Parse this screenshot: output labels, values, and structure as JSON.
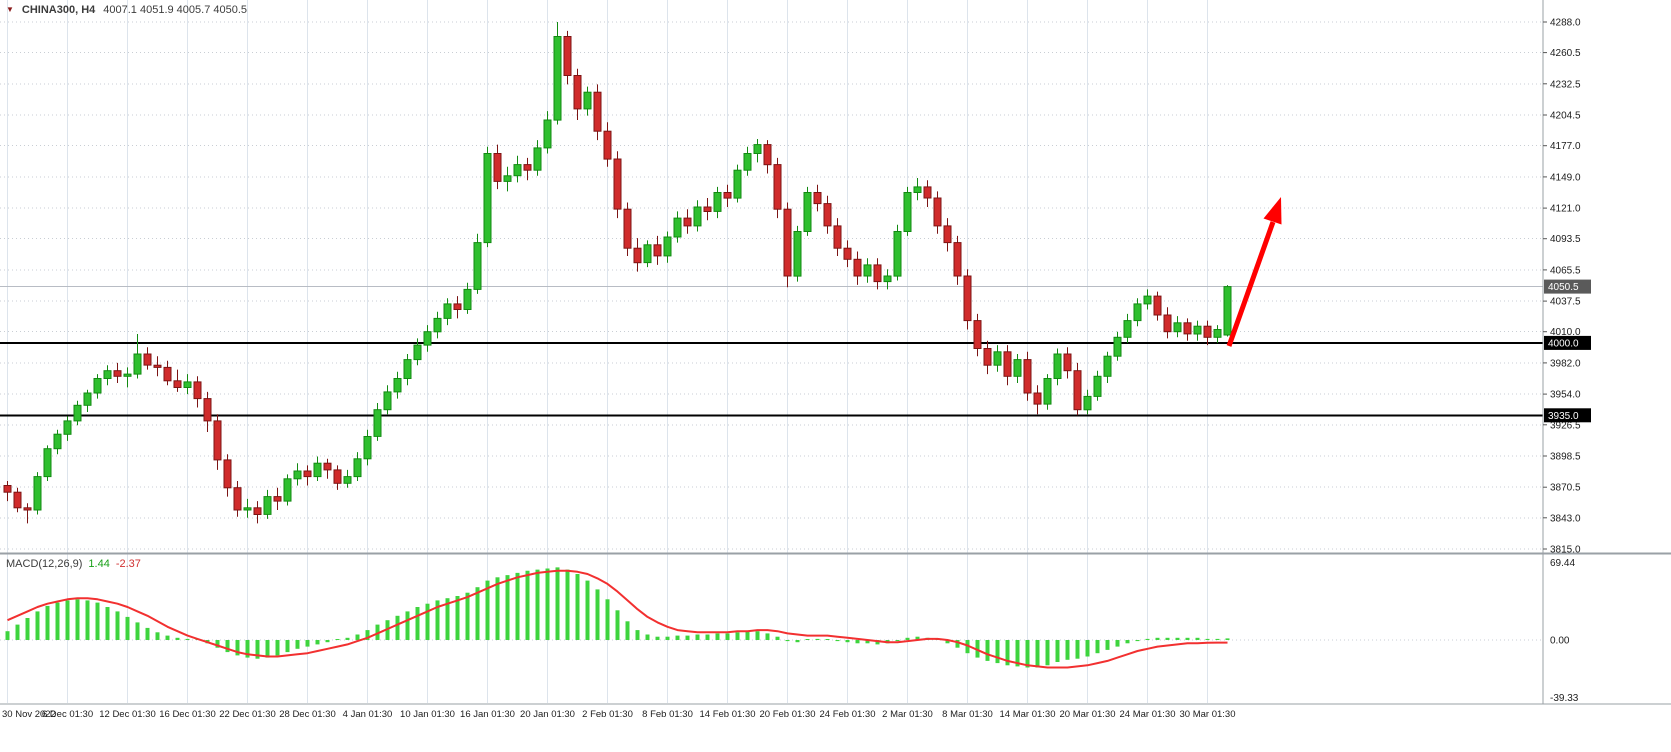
{
  "header": {
    "symbol_timeframe": "CHINA300, H4",
    "ohlc": "4007.1 4051.9 4005.7 4050.5"
  },
  "indicator": {
    "name": "MACD(12,26,9)",
    "main_value": "1.44",
    "signal_value": "-2.37"
  },
  "chart_data": {
    "type": "candlestick",
    "symbol": "CHINA300",
    "timeframe": "H4",
    "title": "CHINA300, H4",
    "ylim": [
      3815.0,
      4288.0
    ],
    "grid": true,
    "price_axis_ticks": [
      4288.0,
      4260.5,
      4232.5,
      4204.5,
      4177.0,
      4149.0,
      4121.0,
      4093.5,
      4065.5,
      4037.5,
      4010.0,
      3982.0,
      3954.0,
      3926.5,
      3898.5,
      3870.5,
      3843.0,
      3815.0
    ],
    "time_axis_labels": [
      "30 Nov 2022",
      "6 Dec 01:30",
      "12 Dec 01:30",
      "16 Dec 01:30",
      "22 Dec 01:30",
      "28 Dec 01:30",
      "4 Jan 01:30",
      "10 Jan 01:30",
      "16 Jan 01:30",
      "20 Jan 01:30",
      "2 Feb 01:30",
      "8 Feb 01:30",
      "14 Feb 01:30",
      "20 Feb 01:30",
      "24 Feb 01:30",
      "2 Mar 01:30",
      "8 Mar 01:30",
      "14 Mar 01:30",
      "20 Mar 01:30",
      "24 Mar 01:30",
      "30 Mar 01:30"
    ],
    "candles_per_label": 6,
    "current_price": 4050.5,
    "horizontal_lines": [
      4000.0,
      3935.0
    ],
    "annotation": {
      "type": "arrow-up-right",
      "color": "#ff0000"
    },
    "candles_ohlc": [
      [
        3872,
        3876,
        3858,
        3866
      ],
      [
        3866,
        3870,
        3848,
        3852
      ],
      [
        3852,
        3856,
        3838,
        3850
      ],
      [
        3850,
        3884,
        3846,
        3880
      ],
      [
        3880,
        3908,
        3876,
        3905
      ],
      [
        3905,
        3922,
        3900,
        3918
      ],
      [
        3918,
        3934,
        3912,
        3930
      ],
      [
        3930,
        3948,
        3926,
        3944
      ],
      [
        3944,
        3958,
        3938,
        3955
      ],
      [
        3955,
        3972,
        3950,
        3968
      ],
      [
        3968,
        3980,
        3962,
        3975
      ],
      [
        3975,
        3982,
        3964,
        3970
      ],
      [
        3970,
        3978,
        3960,
        3972
      ],
      [
        3972,
        4008,
        3968,
        3990
      ],
      [
        3990,
        3996,
        3976,
        3980
      ],
      [
        3980,
        3988,
        3970,
        3978
      ],
      [
        3978,
        3984,
        3962,
        3966
      ],
      [
        3966,
        3976,
        3956,
        3960
      ],
      [
        3960,
        3972,
        3954,
        3965
      ],
      [
        3965,
        3970,
        3942,
        3950
      ],
      [
        3950,
        3956,
        3920,
        3930
      ],
      [
        3930,
        3936,
        3886,
        3895
      ],
      [
        3895,
        3900,
        3862,
        3870
      ],
      [
        3870,
        3876,
        3844,
        3850
      ],
      [
        3850,
        3860,
        3843,
        3852
      ],
      [
        3852,
        3858,
        3838,
        3846
      ],
      [
        3846,
        3868,
        3842,
        3862
      ],
      [
        3862,
        3870,
        3850,
        3858
      ],
      [
        3858,
        3882,
        3854,
        3878
      ],
      [
        3878,
        3892,
        3872,
        3885
      ],
      [
        3885,
        3890,
        3872,
        3880
      ],
      [
        3880,
        3898,
        3876,
        3892
      ],
      [
        3892,
        3896,
        3878,
        3886
      ],
      [
        3886,
        3890,
        3868,
        3874
      ],
      [
        3874,
        3886,
        3870,
        3880
      ],
      [
        3880,
        3902,
        3876,
        3896
      ],
      [
        3896,
        3922,
        3890,
        3916
      ],
      [
        3916,
        3946,
        3912,
        3940
      ],
      [
        3940,
        3962,
        3936,
        3956
      ],
      [
        3956,
        3974,
        3950,
        3968
      ],
      [
        3968,
        3990,
        3962,
        3985
      ],
      [
        3985,
        4004,
        3980,
        3998
      ],
      [
        3998,
        4016,
        3992,
        4010
      ],
      [
        4010,
        4028,
        4004,
        4022
      ],
      [
        4022,
        4040,
        4016,
        4035
      ],
      [
        4035,
        4042,
        4022,
        4030
      ],
      [
        4030,
        4054,
        4026,
        4048
      ],
      [
        4048,
        4098,
        4044,
        4090
      ],
      [
        4090,
        4176,
        4086,
        4170
      ],
      [
        4170,
        4178,
        4138,
        4145
      ],
      [
        4145,
        4158,
        4136,
        4150
      ],
      [
        4150,
        4168,
        4144,
        4160
      ],
      [
        4160,
        4166,
        4146,
        4155
      ],
      [
        4155,
        4182,
        4150,
        4175
      ],
      [
        4175,
        4208,
        4170,
        4200
      ],
      [
        4200,
        4288,
        4196,
        4275
      ],
      [
        4275,
        4280,
        4232,
        4240
      ],
      [
        4240,
        4246,
        4200,
        4210
      ],
      [
        4210,
        4230,
        4204,
        4225
      ],
      [
        4225,
        4232,
        4182,
        4190
      ],
      [
        4190,
        4198,
        4158,
        4165
      ],
      [
        4165,
        4172,
        4112,
        4120
      ],
      [
        4120,
        4126,
        4078,
        4085
      ],
      [
        4085,
        4094,
        4064,
        4072
      ],
      [
        4072,
        4092,
        4068,
        4088
      ],
      [
        4088,
        4096,
        4070,
        4078
      ],
      [
        4078,
        4100,
        4072,
        4095
      ],
      [
        4095,
        4118,
        4090,
        4112
      ],
      [
        4112,
        4120,
        4098,
        4105
      ],
      [
        4105,
        4128,
        4100,
        4122
      ],
      [
        4122,
        4130,
        4110,
        4118
      ],
      [
        4118,
        4140,
        4112,
        4135
      ],
      [
        4135,
        4142,
        4122,
        4130
      ],
      [
        4130,
        4160,
        4126,
        4155
      ],
      [
        4155,
        4176,
        4150,
        4170
      ],
      [
        4170,
        4183,
        4162,
        4178
      ],
      [
        4178,
        4182,
        4152,
        4160
      ],
      [
        4160,
        4166,
        4112,
        4120
      ],
      [
        4120,
        4126,
        4050,
        4060
      ],
      [
        4060,
        4105,
        4055,
        4100
      ],
      [
        4100,
        4140,
        4096,
        4135
      ],
      [
        4135,
        4142,
        4118,
        4125
      ],
      [
        4125,
        4132,
        4098,
        4105
      ],
      [
        4105,
        4112,
        4078,
        4085
      ],
      [
        4085,
        4092,
        4068,
        4075
      ],
      [
        4075,
        4082,
        4052,
        4060
      ],
      [
        4060,
        4076,
        4054,
        4070
      ],
      [
        4070,
        4076,
        4048,
        4055
      ],
      [
        4055,
        4066,
        4048,
        4060
      ],
      [
        4060,
        4106,
        4056,
        4100
      ],
      [
        4100,
        4140,
        4096,
        4135
      ],
      [
        4135,
        4148,
        4128,
        4140
      ],
      [
        4140,
        4146,
        4122,
        4130
      ],
      [
        4130,
        4136,
        4098,
        4105
      ],
      [
        4105,
        4112,
        4082,
        4090
      ],
      [
        4090,
        4096,
        4052,
        4060
      ],
      [
        4060,
        4066,
        4012,
        4020
      ],
      [
        4020,
        4026,
        3988,
        3995
      ],
      [
        3995,
        4002,
        3972,
        3980
      ],
      [
        3980,
        3998,
        3974,
        3992
      ],
      [
        3992,
        3998,
        3962,
        3970
      ],
      [
        3970,
        3990,
        3964,
        3985
      ],
      [
        3985,
        3992,
        3948,
        3955
      ],
      [
        3955,
        3962,
        3936,
        3945
      ],
      [
        3945,
        3972,
        3940,
        3968
      ],
      [
        3968,
        3995,
        3962,
        3990
      ],
      [
        3990,
        3996,
        3968,
        3975
      ],
      [
        3975,
        3982,
        3935,
        3940
      ],
      [
        3940,
        3958,
        3936,
        3952
      ],
      [
        3952,
        3975,
        3948,
        3970
      ],
      [
        3970,
        3992,
        3964,
        3988
      ],
      [
        3988,
        4010,
        3984,
        4005
      ],
      [
        4005,
        4026,
        4000,
        4020
      ],
      [
        4020,
        4040,
        4015,
        4035
      ],
      [
        4035,
        4048,
        4030,
        4042
      ],
      [
        4042,
        4046,
        4020,
        4025
      ],
      [
        4025,
        4032,
        4004,
        4010
      ],
      [
        4010,
        4024,
        4005,
        4018
      ],
      [
        4018,
        4022,
        4002,
        4008
      ],
      [
        4008,
        4020,
        4002,
        4015
      ],
      [
        4015,
        4020,
        3998,
        4005
      ],
      [
        4005,
        4016,
        4000,
        4012
      ],
      [
        4007.1,
        4051.9,
        4005.7,
        4050.5
      ]
    ],
    "macd": {
      "type": "histogram+line",
      "label": "MACD(12,26,9)",
      "main_value": 1.44,
      "signal_value": -2.37,
      "axis_ticks": [
        69.44,
        0.0,
        -39.33
      ],
      "ylim": [
        -39.33,
        69.44
      ],
      "histogram": [
        8,
        14,
        20,
        26,
        31,
        34,
        36,
        37,
        36,
        34,
        30,
        26,
        21,
        16,
        11,
        7,
        4,
        2,
        1,
        0,
        -3,
        -7,
        -11,
        -14,
        -16,
        -17,
        -16,
        -14,
        -11,
        -8,
        -6,
        -4,
        -2,
        0,
        2,
        5,
        9,
        14,
        18,
        22,
        26,
        30,
        33,
        36,
        38,
        40,
        43,
        48,
        54,
        57,
        59,
        61,
        63,
        64,
        65,
        66,
        64,
        60,
        54,
        46,
        37,
        27,
        17,
        9,
        5,
        3,
        3,
        4,
        4,
        5,
        5,
        6,
        6,
        7,
        8,
        8,
        6,
        3,
        -1,
        -2,
        0,
        1,
        0,
        -1,
        -2,
        -3,
        -3,
        -4,
        -3,
        -1,
        2,
        3,
        2,
        0,
        -3,
        -7,
        -12,
        -16,
        -19,
        -21,
        -23,
        -24,
        -25,
        -25,
        -23,
        -20,
        -18,
        -17,
        -15,
        -12,
        -9,
        -6,
        -3,
        -1,
        1,
        2,
        2,
        2,
        2,
        2,
        1,
        1,
        1.44
      ],
      "signal": [
        18,
        22,
        26,
        30,
        33,
        35,
        37,
        38,
        38,
        37,
        35,
        33,
        30,
        26,
        22,
        17,
        12,
        8,
        4,
        1,
        -2,
        -5,
        -8,
        -11,
        -13,
        -14,
        -15,
        -15,
        -14,
        -13,
        -12,
        -10,
        -8,
        -6,
        -4,
        -1,
        2,
        6,
        10,
        14,
        18,
        22,
        26,
        30,
        33,
        36,
        39,
        43,
        47,
        51,
        54,
        57,
        59,
        61,
        62,
        63,
        63,
        62,
        60,
        56,
        51,
        44,
        36,
        28,
        21,
        16,
        12,
        9,
        8,
        7,
        7,
        7,
        7,
        8,
        8,
        9,
        9,
        8,
        6,
        5,
        4,
        4,
        4,
        3,
        2,
        1,
        0,
        -1,
        -2,
        -2,
        -1,
        0,
        1,
        1,
        0,
        -2,
        -5,
        -9,
        -13,
        -16,
        -19,
        -21,
        -23,
        -24,
        -25,
        -25,
        -25,
        -24,
        -23,
        -21,
        -19,
        -16,
        -13,
        -10,
        -8,
        -6,
        -5,
        -4,
        -3,
        -3,
        -2.5,
        -2.4,
        -2.37
      ]
    },
    "colors": {
      "up": "#2fbf2f",
      "up_border": "#128a12",
      "down": "#d02b2b",
      "down_border": "#7c1414",
      "grid_horizontal": "#c9ced4",
      "grid_vertical": "#dde4ec",
      "hline": "#000000",
      "bid_line": "#b8bcc4",
      "arrow": "#ff0000",
      "macd_hist": "#3ed43e",
      "macd_signal": "#f23030",
      "badge_current": "#5a5a5a",
      "badge_level": "#000000",
      "axis_text": "#1c1c1c"
    }
  }
}
